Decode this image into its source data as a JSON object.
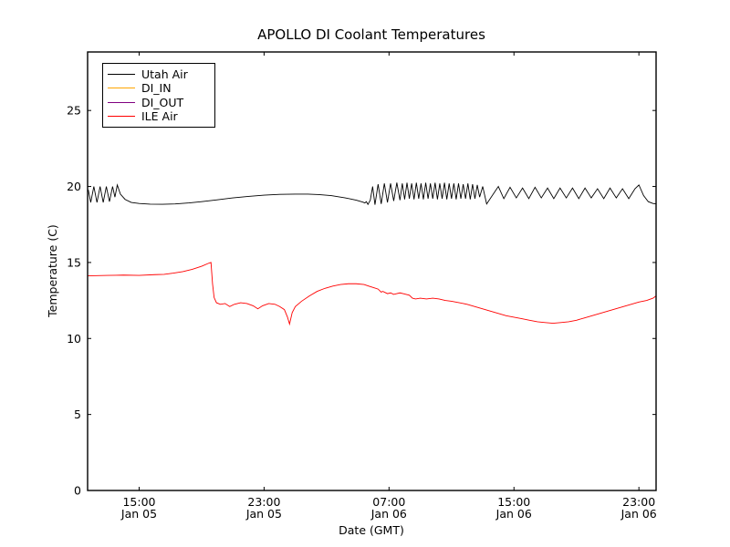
{
  "title": "APOLLO DI Coolant Temperatures",
  "colors": {
    "background": "#ffffff",
    "axes": "#000000",
    "utah_air": "#000000",
    "di_in": "#ffa500",
    "di_out": "#800080",
    "ile_air": "#ff0000"
  },
  "chart_data": {
    "type": "line",
    "title": "APOLLO DI Coolant Temperatures",
    "xlabel": "Date (GMT)",
    "ylabel": "Temperature (C)",
    "x_unit": "hours since Jan 05 00:00 GMT",
    "xlim_hours": [
      11.7,
      48.1
    ],
    "ylim": [
      0,
      28.85
    ],
    "grid": false,
    "legend_position": "upper-left",
    "tick_direction": "in",
    "xticks": [
      {
        "hours": 15,
        "time": "15:00",
        "date": "Jan 05"
      },
      {
        "hours": 23,
        "time": "23:00",
        "date": "Jan 05"
      },
      {
        "hours": 31,
        "time": "07:00",
        "date": "Jan 06"
      },
      {
        "hours": 39,
        "time": "15:00",
        "date": "Jan 06"
      },
      {
        "hours": 47,
        "time": "23:00",
        "date": "Jan 06"
      }
    ],
    "yticks": [
      0,
      5,
      10,
      15,
      20,
      25
    ],
    "series": [
      {
        "name": "Utah Air",
        "color": "#000000",
        "points": [
          [
            11.7,
            19.7
          ],
          [
            11.75,
            19.75
          ],
          [
            11.9,
            18.95
          ],
          [
            12.1,
            20.0
          ],
          [
            12.3,
            18.95
          ],
          [
            12.5,
            20.0
          ],
          [
            12.7,
            18.95
          ],
          [
            12.9,
            20.0
          ],
          [
            13.1,
            19.0
          ],
          [
            13.3,
            20.0
          ],
          [
            13.45,
            19.3
          ],
          [
            13.6,
            20.1
          ],
          [
            13.8,
            19.5
          ],
          [
            14.1,
            19.15
          ],
          [
            14.5,
            18.95
          ],
          [
            15.0,
            18.88
          ],
          [
            15.7,
            18.84
          ],
          [
            16.5,
            18.83
          ],
          [
            17.3,
            18.85
          ],
          [
            18.2,
            18.92
          ],
          [
            19.0,
            19.0
          ],
          [
            20.0,
            19.12
          ],
          [
            21.0,
            19.25
          ],
          [
            22.0,
            19.35
          ],
          [
            23.0,
            19.43
          ],
          [
            24.0,
            19.48
          ],
          [
            25.0,
            19.5
          ],
          [
            25.8,
            19.5
          ],
          [
            26.5,
            19.47
          ],
          [
            27.3,
            19.4
          ],
          [
            28.2,
            19.25
          ],
          [
            28.9,
            19.1
          ],
          [
            29.3,
            18.98
          ],
          [
            29.45,
            18.92
          ],
          [
            29.55,
            19.0
          ],
          [
            29.65,
            18.82
          ],
          [
            29.8,
            19.1
          ],
          [
            29.95,
            20.0
          ],
          [
            30.1,
            18.8
          ],
          [
            30.3,
            20.15
          ],
          [
            30.5,
            18.85
          ],
          [
            30.7,
            20.2
          ],
          [
            30.9,
            18.95
          ],
          [
            31.1,
            20.2
          ],
          [
            31.3,
            19.05
          ],
          [
            31.5,
            20.25
          ],
          [
            31.7,
            19.1
          ],
          [
            31.85,
            20.2
          ],
          [
            32.0,
            19.15
          ],
          [
            32.15,
            20.25
          ],
          [
            32.3,
            19.2
          ],
          [
            32.45,
            20.2
          ],
          [
            32.6,
            19.15
          ],
          [
            32.75,
            20.25
          ],
          [
            32.9,
            19.2
          ],
          [
            33.05,
            20.2
          ],
          [
            33.2,
            19.15
          ],
          [
            33.35,
            20.25
          ],
          [
            33.5,
            19.2
          ],
          [
            33.65,
            20.2
          ],
          [
            33.8,
            19.2
          ],
          [
            33.95,
            20.25
          ],
          [
            34.1,
            19.15
          ],
          [
            34.25,
            20.2
          ],
          [
            34.4,
            19.2
          ],
          [
            34.55,
            20.25
          ],
          [
            34.7,
            19.15
          ],
          [
            34.85,
            20.2
          ],
          [
            35.0,
            19.2
          ],
          [
            35.15,
            20.2
          ],
          [
            35.3,
            19.15
          ],
          [
            35.45,
            20.2
          ],
          [
            35.6,
            19.2
          ],
          [
            35.75,
            20.15
          ],
          [
            35.9,
            19.2
          ],
          [
            36.05,
            20.2
          ],
          [
            36.2,
            19.15
          ],
          [
            36.35,
            20.15
          ],
          [
            36.5,
            19.2
          ],
          [
            36.65,
            20.1
          ],
          [
            36.8,
            19.3
          ],
          [
            37.0,
            20.0
          ],
          [
            37.25,
            18.85
          ],
          [
            38.0,
            20.0
          ],
          [
            38.35,
            19.2
          ],
          [
            38.75,
            19.95
          ],
          [
            39.15,
            19.25
          ],
          [
            39.55,
            19.9
          ],
          [
            39.95,
            19.2
          ],
          [
            40.35,
            19.95
          ],
          [
            40.75,
            19.25
          ],
          [
            41.15,
            19.9
          ],
          [
            41.55,
            19.2
          ],
          [
            41.95,
            19.9
          ],
          [
            42.35,
            19.25
          ],
          [
            42.75,
            19.9
          ],
          [
            43.15,
            19.2
          ],
          [
            43.55,
            19.9
          ],
          [
            43.95,
            19.25
          ],
          [
            44.35,
            19.85
          ],
          [
            44.75,
            19.2
          ],
          [
            45.15,
            19.9
          ],
          [
            45.55,
            19.25
          ],
          [
            45.95,
            19.85
          ],
          [
            46.35,
            19.2
          ],
          [
            46.75,
            19.85
          ],
          [
            47.0,
            20.1
          ],
          [
            47.3,
            19.4
          ],
          [
            47.6,
            19.0
          ],
          [
            47.9,
            18.88
          ],
          [
            48.1,
            18.85
          ]
        ]
      },
      {
        "name": "DI_IN",
        "color": "#ffa500",
        "points": [
          [
            11.7,
            0
          ],
          [
            48.1,
            0
          ]
        ]
      },
      {
        "name": "DI_OUT",
        "color": "#800080",
        "points": [
          [
            11.7,
            0
          ],
          [
            48.1,
            0
          ]
        ]
      },
      {
        "name": "ILE Air",
        "color": "#ff0000",
        "points": [
          [
            11.7,
            14.12
          ],
          [
            13.0,
            14.15
          ],
          [
            14.0,
            14.17
          ],
          [
            15.0,
            14.15
          ],
          [
            16.0,
            14.2
          ],
          [
            16.6,
            14.22
          ],
          [
            17.2,
            14.3
          ],
          [
            17.8,
            14.4
          ],
          [
            18.4,
            14.55
          ],
          [
            19.0,
            14.75
          ],
          [
            19.45,
            14.95
          ],
          [
            19.6,
            15.0
          ],
          [
            19.7,
            13.6
          ],
          [
            19.8,
            12.7
          ],
          [
            19.95,
            12.35
          ],
          [
            20.2,
            12.25
          ],
          [
            20.5,
            12.3
          ],
          [
            20.8,
            12.1
          ],
          [
            21.1,
            12.25
          ],
          [
            21.5,
            12.35
          ],
          [
            21.9,
            12.3
          ],
          [
            22.3,
            12.15
          ],
          [
            22.6,
            11.95
          ],
          [
            22.9,
            12.15
          ],
          [
            23.3,
            12.3
          ],
          [
            23.7,
            12.25
          ],
          [
            24.0,
            12.1
          ],
          [
            24.3,
            11.9
          ],
          [
            24.5,
            11.4
          ],
          [
            24.63,
            10.95
          ],
          [
            24.8,
            11.7
          ],
          [
            25.0,
            12.1
          ],
          [
            25.4,
            12.45
          ],
          [
            25.9,
            12.8
          ],
          [
            26.4,
            13.1
          ],
          [
            26.9,
            13.3
          ],
          [
            27.4,
            13.45
          ],
          [
            27.9,
            13.55
          ],
          [
            28.4,
            13.6
          ],
          [
            28.9,
            13.6
          ],
          [
            29.4,
            13.55
          ],
          [
            29.7,
            13.45
          ],
          [
            30.0,
            13.35
          ],
          [
            30.3,
            13.25
          ],
          [
            30.5,
            13.05
          ],
          [
            30.6,
            13.1
          ],
          [
            30.9,
            12.95
          ],
          [
            31.1,
            13.0
          ],
          [
            31.3,
            12.9
          ],
          [
            31.5,
            12.95
          ],
          [
            31.7,
            13.0
          ],
          [
            31.9,
            12.95
          ],
          [
            32.1,
            12.9
          ],
          [
            32.3,
            12.85
          ],
          [
            32.5,
            12.65
          ],
          [
            32.7,
            12.6
          ],
          [
            33.0,
            12.65
          ],
          [
            33.4,
            12.6
          ],
          [
            33.8,
            12.65
          ],
          [
            34.2,
            12.6
          ],
          [
            34.6,
            12.5
          ],
          [
            35.0,
            12.45
          ],
          [
            35.5,
            12.35
          ],
          [
            36.0,
            12.25
          ],
          [
            36.5,
            12.1
          ],
          [
            37.0,
            11.95
          ],
          [
            37.5,
            11.8
          ],
          [
            38.0,
            11.65
          ],
          [
            38.5,
            11.5
          ],
          [
            39.0,
            11.4
          ],
          [
            39.5,
            11.3
          ],
          [
            40.0,
            11.2
          ],
          [
            40.5,
            11.1
          ],
          [
            41.0,
            11.05
          ],
          [
            41.5,
            11.0
          ],
          [
            42.0,
            11.05
          ],
          [
            42.5,
            11.1
          ],
          [
            43.0,
            11.2
          ],
          [
            43.5,
            11.35
          ],
          [
            44.0,
            11.5
          ],
          [
            44.5,
            11.65
          ],
          [
            45.0,
            11.8
          ],
          [
            45.5,
            11.95
          ],
          [
            46.0,
            12.1
          ],
          [
            46.5,
            12.25
          ],
          [
            47.0,
            12.4
          ],
          [
            47.5,
            12.5
          ],
          [
            47.9,
            12.65
          ],
          [
            48.1,
            12.8
          ]
        ]
      }
    ]
  }
}
